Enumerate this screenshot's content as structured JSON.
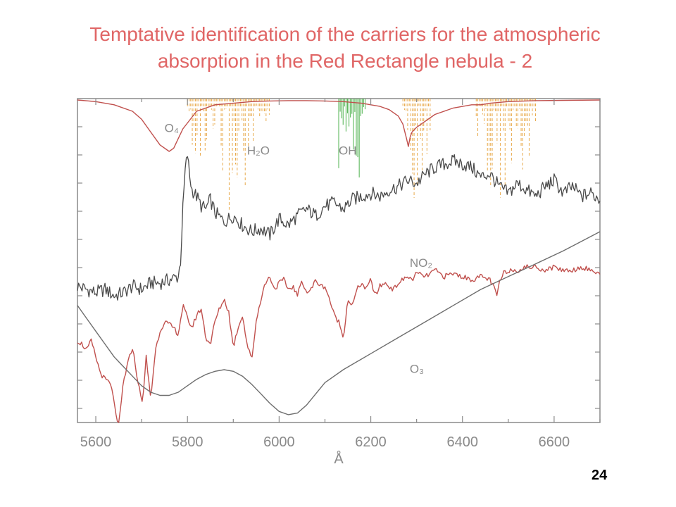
{
  "slide": {
    "title_line1": "Temptative identification of the  carriers for the atmospheric",
    "title_line2": "absorption in the Red Rectangle nebula  - 2",
    "page_number": "24",
    "title_color": "#e06666"
  },
  "chart_data": {
    "type": "line",
    "title": "",
    "xlabel": "Å",
    "ylabel": "",
    "xlim": [
      5560,
      6700
    ],
    "ylim": [
      0,
      1
    ],
    "xticks": [
      5600,
      5800,
      6000,
      6200,
      6400,
      6600
    ],
    "grid": false,
    "curve_labels": [
      {
        "text": "O₄",
        "x": 5750,
        "y": 0.9,
        "name": "o4-label"
      },
      {
        "text": "H₂O",
        "x": 5930,
        "y": 0.83,
        "name": "h2o-label"
      },
      {
        "text": "OH",
        "x": 6130,
        "y": 0.83,
        "name": "oh-label"
      },
      {
        "text": "NO₂",
        "x": 6285,
        "y": 0.48,
        "name": "no2-label"
      },
      {
        "text": "O₃",
        "x": 6285,
        "y": 0.15,
        "name": "o3-label"
      }
    ],
    "series": [
      {
        "key": "o4",
        "color": "#c0504d",
        "x": [
          5560,
          5600,
          5640,
          5680,
          5700,
          5720,
          5740,
          5760,
          5770,
          5790,
          5820,
          5860,
          5900,
          5940,
          5980,
          6020,
          6060,
          6100,
          6140,
          6180,
          6220,
          6240,
          6260,
          6270,
          6278,
          6282,
          6286,
          6290,
          6300,
          6340,
          6380,
          6420,
          6440,
          6460,
          6500,
          6560,
          6620,
          6700
        ],
        "values": [
          1.0,
          0.995,
          0.985,
          0.965,
          0.94,
          0.9,
          0.86,
          0.84,
          0.85,
          0.91,
          0.965,
          0.985,
          0.99,
          0.995,
          0.997,
          0.998,
          0.998,
          0.997,
          0.995,
          0.99,
          0.98,
          0.97,
          0.95,
          0.925,
          0.88,
          0.855,
          0.885,
          0.9,
          0.915,
          0.955,
          0.975,
          0.985,
          0.985,
          0.99,
          0.995,
          0.998,
          0.999,
          1.0
        ]
      },
      {
        "key": "no2",
        "color": "#c0504d",
        "x": [
          5560,
          5570,
          5580,
          5590,
          5600,
          5610,
          5620,
          5630,
          5640,
          5645,
          5650,
          5655,
          5660,
          5670,
          5680,
          5690,
          5700,
          5705,
          5710,
          5715,
          5720,
          5730,
          5740,
          5750,
          5760,
          5770,
          5780,
          5790,
          5800,
          5810,
          5820,
          5830,
          5840,
          5850,
          5860,
          5870,
          5880,
          5890,
          5900,
          5910,
          5920,
          5930,
          5940,
          5950,
          5960,
          5970,
          5980,
          5990,
          6000,
          6010,
          6020,
          6030,
          6040,
          6050,
          6060,
          6070,
          6080,
          6090,
          6100,
          6110,
          6120,
          6130,
          6140,
          6150,
          6160,
          6170,
          6180,
          6190,
          6200,
          6210,
          6220,
          6230,
          6240,
          6250,
          6260,
          6270,
          6280,
          6290,
          6300,
          6320,
          6340,
          6360,
          6380,
          6400,
          6420,
          6440,
          6460,
          6470,
          6475,
          6480,
          6490,
          6500,
          6520,
          6540,
          6560,
          6580,
          6600,
          6620,
          6640,
          6660,
          6680,
          6700
        ],
        "values": [
          0.25,
          0.24,
          0.22,
          0.25,
          0.2,
          0.15,
          0.13,
          0.12,
          0.07,
          0.0,
          -0.02,
          0.05,
          0.12,
          0.18,
          0.23,
          0.14,
          0.06,
          0.1,
          0.2,
          0.13,
          0.07,
          0.22,
          0.28,
          0.31,
          0.3,
          0.29,
          0.27,
          0.36,
          0.32,
          0.29,
          0.33,
          0.35,
          0.26,
          0.24,
          0.31,
          0.35,
          0.38,
          0.34,
          0.23,
          0.29,
          0.33,
          0.24,
          0.19,
          0.31,
          0.38,
          0.43,
          0.45,
          0.41,
          0.43,
          0.44,
          0.41,
          0.42,
          0.39,
          0.44,
          0.4,
          0.41,
          0.44,
          0.42,
          0.42,
          0.38,
          0.33,
          0.31,
          0.26,
          0.38,
          0.36,
          0.41,
          0.43,
          0.41,
          0.44,
          0.39,
          0.42,
          0.43,
          0.42,
          0.41,
          0.43,
          0.44,
          0.45,
          0.44,
          0.46,
          0.45,
          0.47,
          0.45,
          0.46,
          0.45,
          0.44,
          0.45,
          0.44,
          0.41,
          0.39,
          0.43,
          0.46,
          0.47,
          0.47,
          0.48,
          0.48,
          0.47,
          0.48,
          0.47,
          0.47,
          0.48,
          0.47,
          0.46
        ]
      },
      {
        "key": "o3",
        "color": "#6e6e6e",
        "x": [
          5560,
          5580,
          5600,
          5620,
          5640,
          5660,
          5680,
          5700,
          5720,
          5740,
          5760,
          5780,
          5800,
          5820,
          5840,
          5860,
          5880,
          5900,
          5920,
          5940,
          5960,
          5980,
          6000,
          6020,
          6040,
          6060,
          6080,
          6100,
          6140,
          6200,
          6260,
          6320,
          6380,
          6440,
          6500,
          6560,
          6620,
          6660,
          6700
        ],
        "values": [
          0.36,
          0.32,
          0.28,
          0.24,
          0.2,
          0.17,
          0.14,
          0.11,
          0.09,
          0.08,
          0.08,
          0.09,
          0.11,
          0.13,
          0.145,
          0.155,
          0.16,
          0.155,
          0.14,
          0.115,
          0.085,
          0.055,
          0.03,
          0.02,
          0.025,
          0.05,
          0.085,
          0.12,
          0.16,
          0.21,
          0.26,
          0.31,
          0.36,
          0.41,
          0.45,
          0.49,
          0.53,
          0.56,
          0.59
        ]
      },
      {
        "key": "spectrum",
        "color": "#4a4a4a",
        "x": [
          5560,
          5580,
          5600,
          5620,
          5640,
          5660,
          5680,
          5700,
          5720,
          5740,
          5760,
          5780,
          5785,
          5790,
          5795,
          5800,
          5805,
          5810,
          5820,
          5830,
          5840,
          5850,
          5860,
          5880,
          5900,
          5920,
          5940,
          5960,
          5980,
          6000,
          6020,
          6040,
          6060,
          6080,
          6100,
          6120,
          6140,
          6160,
          6180,
          6200,
          6220,
          6240,
          6260,
          6280,
          6300,
          6320,
          6340,
          6360,
          6380,
          6400,
          6420,
          6440,
          6460,
          6480,
          6500,
          6520,
          6540,
          6560,
          6580,
          6600,
          6620,
          6640,
          6660,
          6680,
          6700
        ],
        "values": [
          0.42,
          0.41,
          0.4,
          0.41,
          0.39,
          0.4,
          0.42,
          0.41,
          0.43,
          0.43,
          0.44,
          0.45,
          0.5,
          0.66,
          0.78,
          0.83,
          0.76,
          0.72,
          0.7,
          0.67,
          0.66,
          0.69,
          0.65,
          0.62,
          0.64,
          0.61,
          0.59,
          0.6,
          0.58,
          0.63,
          0.61,
          0.64,
          0.66,
          0.64,
          0.67,
          0.68,
          0.66,
          0.69,
          0.7,
          0.71,
          0.7,
          0.72,
          0.73,
          0.75,
          0.74,
          0.77,
          0.79,
          0.8,
          0.81,
          0.8,
          0.79,
          0.76,
          0.77,
          0.73,
          0.71,
          0.74,
          0.72,
          0.7,
          0.73,
          0.75,
          0.71,
          0.73,
          0.7,
          0.71,
          0.69
        ]
      }
    ]
  }
}
